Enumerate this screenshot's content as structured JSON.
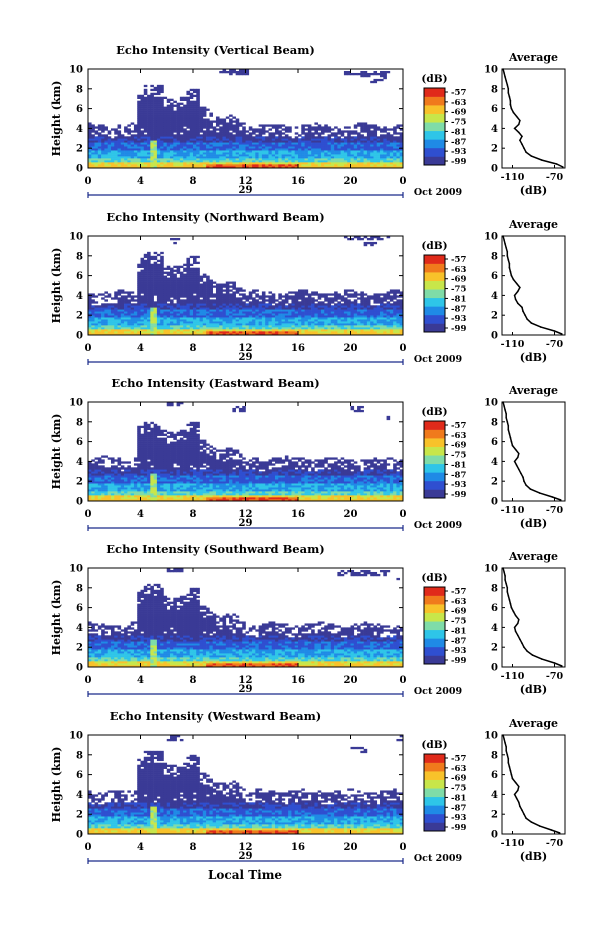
{
  "figure": {
    "bottom_xlabel": "Local Time",
    "date_label": "Oct 2009",
    "cbar_unit": "(dB)",
    "profile_title": "Average",
    "profile_xlabel": "(dB)",
    "ylabel": "Height (km)"
  },
  "colors": {
    "colormap": [
      "#3a3a96",
      "#2f4fd0",
      "#1f8ae6",
      "#2ec5e8",
      "#7fdca8",
      "#c8e64a",
      "#f8c22a",
      "#f07a1c",
      "#e02a1a"
    ],
    "background": "#ffffff",
    "axis": "#000000"
  },
  "chart_data": [
    {
      "type": "heatmap",
      "title": "Echo Intensity (Vertical Beam)",
      "xlabel": "",
      "x_ticks": [
        "0",
        "4",
        "8",
        "12",
        "16",
        "20",
        "0"
      ],
      "x_sublabel": "29",
      "xlim": [
        0,
        24
      ],
      "ylabel": "Height (km)",
      "y_ticks": [
        "0",
        "2",
        "4",
        "6",
        "8",
        "10"
      ],
      "ylim": [
        0,
        10
      ],
      "colorbar": {
        "unit": "(dB)",
        "ticks": [
          "-57",
          "-63",
          "-69",
          "-75",
          "-81",
          "-87",
          "-93",
          "-99"
        ],
        "range": [
          -99,
          -57
        ]
      },
      "profile": {
        "title": "Average",
        "xlabel": "(dB)",
        "x_ticks": [
          "-110",
          "-70"
        ],
        "xlim": [
          -120,
          -60
        ],
        "y_ticks": [
          "0",
          "2",
          "4",
          "6",
          "8",
          "10"
        ],
        "ylim": [
          0,
          10
        ],
        "points": [
          [
            -62,
            0.1
          ],
          [
            -68,
            0.4
          ],
          [
            -82,
            0.8
          ],
          [
            -92,
            1.2
          ],
          [
            -97,
            1.6
          ],
          [
            -99,
            2.0
          ],
          [
            -101,
            2.4
          ],
          [
            -103,
            2.8
          ],
          [
            -101,
            3.2
          ],
          [
            -104,
            3.6
          ],
          [
            -108,
            4.0
          ],
          [
            -104,
            4.4
          ],
          [
            -103,
            4.8
          ],
          [
            -106,
            5.2
          ],
          [
            -109,
            5.6
          ],
          [
            -111,
            6.0
          ],
          [
            -112,
            6.4
          ],
          [
            -112,
            6.8
          ],
          [
            -113,
            7.2
          ],
          [
            -114,
            7.6
          ],
          [
            -114,
            8.0
          ],
          [
            -115,
            8.4
          ],
          [
            -116,
            8.8
          ],
          [
            -117,
            9.2
          ],
          [
            -118,
            9.6
          ],
          [
            -119,
            10.0
          ]
        ]
      }
    },
    {
      "type": "heatmap",
      "title": "Echo Intensity (Northward Beam)",
      "xlabel": "",
      "x_ticks": [
        "0",
        "4",
        "8",
        "12",
        "16",
        "20",
        "0"
      ],
      "x_sublabel": "29",
      "xlim": [
        0,
        24
      ],
      "ylabel": "Height (km)",
      "y_ticks": [
        "0",
        "2",
        "4",
        "6",
        "8",
        "10"
      ],
      "ylim": [
        0,
        10
      ],
      "colorbar": {
        "unit": "(dB)",
        "ticks": [
          "-57",
          "-63",
          "-69",
          "-75",
          "-81",
          "-87",
          "-93",
          "-99"
        ],
        "range": [
          -99,
          -57
        ]
      },
      "profile": {
        "title": "Average",
        "xlabel": "(dB)",
        "x_ticks": [
          "-110",
          "-70"
        ],
        "xlim": [
          -120,
          -60
        ],
        "y_ticks": [
          "0",
          "2",
          "4",
          "6",
          "8",
          "10"
        ],
        "ylim": [
          0,
          10
        ],
        "points": [
          [
            -63,
            0.1
          ],
          [
            -70,
            0.4
          ],
          [
            -83,
            0.8
          ],
          [
            -92,
            1.2
          ],
          [
            -96,
            1.6
          ],
          [
            -98,
            2.0
          ],
          [
            -100,
            2.4
          ],
          [
            -101,
            2.8
          ],
          [
            -105,
            3.2
          ],
          [
            -107,
            3.6
          ],
          [
            -108,
            4.0
          ],
          [
            -105,
            4.4
          ],
          [
            -103,
            4.8
          ],
          [
            -106,
            5.2
          ],
          [
            -109,
            5.6
          ],
          [
            -111,
            6.0
          ],
          [
            -112,
            6.4
          ],
          [
            -113,
            6.8
          ],
          [
            -113,
            7.2
          ],
          [
            -114,
            7.6
          ],
          [
            -115,
            8.0
          ],
          [
            -115,
            8.4
          ],
          [
            -116,
            8.8
          ],
          [
            -117,
            9.2
          ],
          [
            -118,
            9.6
          ],
          [
            -119,
            10.0
          ]
        ]
      }
    },
    {
      "type": "heatmap",
      "title": "Echo Intensity (Eastward Beam)",
      "xlabel": "",
      "x_ticks": [
        "0",
        "4",
        "8",
        "12",
        "16",
        "20",
        "0"
      ],
      "x_sublabel": "29",
      "xlim": [
        0,
        24
      ],
      "ylabel": "Height (km)",
      "y_ticks": [
        "0",
        "2",
        "4",
        "6",
        "8",
        "10"
      ],
      "ylim": [
        0,
        10
      ],
      "colorbar": {
        "unit": "(dB)",
        "ticks": [
          "-57",
          "-63",
          "-69",
          "-75",
          "-81",
          "-87",
          "-93",
          "-99"
        ],
        "range": [
          -99,
          -57
        ]
      },
      "profile": {
        "title": "Average",
        "xlabel": "(dB)",
        "x_ticks": [
          "-110",
          "-70"
        ],
        "xlim": [
          -120,
          -60
        ],
        "y_ticks": [
          "0",
          "2",
          "4",
          "6",
          "8",
          "10"
        ],
        "ylim": [
          0,
          10
        ],
        "points": [
          [
            -64,
            0.1
          ],
          [
            -72,
            0.4
          ],
          [
            -84,
            0.8
          ],
          [
            -93,
            1.2
          ],
          [
            -97,
            1.6
          ],
          [
            -99,
            2.0
          ],
          [
            -100,
            2.4
          ],
          [
            -102,
            2.8
          ],
          [
            -104,
            3.2
          ],
          [
            -106,
            3.6
          ],
          [
            -108,
            4.0
          ],
          [
            -105,
            4.4
          ],
          [
            -104,
            4.8
          ],
          [
            -107,
            5.2
          ],
          [
            -110,
            5.6
          ],
          [
            -111,
            6.0
          ],
          [
            -112,
            6.4
          ],
          [
            -113,
            6.8
          ],
          [
            -114,
            7.2
          ],
          [
            -114,
            7.6
          ],
          [
            -115,
            8.0
          ],
          [
            -116,
            8.4
          ],
          [
            -116,
            8.8
          ],
          [
            -117,
            9.2
          ],
          [
            -118,
            9.6
          ],
          [
            -119,
            10.0
          ]
        ]
      }
    },
    {
      "type": "heatmap",
      "title": "Echo Intensity (Southward Beam)",
      "xlabel": "",
      "x_ticks": [
        "0",
        "4",
        "8",
        "12",
        "16",
        "20",
        "0"
      ],
      "x_sublabel": "29",
      "xlim": [
        0,
        24
      ],
      "ylabel": "Height (km)",
      "y_ticks": [
        "0",
        "2",
        "4",
        "6",
        "8",
        "10"
      ],
      "ylim": [
        0,
        10
      ],
      "colorbar": {
        "unit": "(dB)",
        "ticks": [
          "-57",
          "-63",
          "-69",
          "-75",
          "-81",
          "-87",
          "-93",
          "-99"
        ],
        "range": [
          -99,
          -57
        ]
      },
      "profile": {
        "title": "Average",
        "xlabel": "(dB)",
        "x_ticks": [
          "-110",
          "-70"
        ],
        "xlim": [
          -120,
          -60
        ],
        "y_ticks": [
          "0",
          "2",
          "4",
          "6",
          "8",
          "10"
        ],
        "ylim": [
          0,
          10
        ],
        "points": [
          [
            -63,
            0.1
          ],
          [
            -70,
            0.4
          ],
          [
            -82,
            0.8
          ],
          [
            -91,
            1.2
          ],
          [
            -96,
            1.6
          ],
          [
            -99,
            2.0
          ],
          [
            -101,
            2.4
          ],
          [
            -103,
            2.8
          ],
          [
            -105,
            3.2
          ],
          [
            -107,
            3.6
          ],
          [
            -108,
            4.0
          ],
          [
            -105,
            4.4
          ],
          [
            -104,
            4.8
          ],
          [
            -107,
            5.2
          ],
          [
            -109,
            5.6
          ],
          [
            -111,
            6.0
          ],
          [
            -112,
            6.4
          ],
          [
            -113,
            6.8
          ],
          [
            -114,
            7.2
          ],
          [
            -115,
            7.6
          ],
          [
            -115,
            8.0
          ],
          [
            -116,
            8.4
          ],
          [
            -117,
            8.8
          ],
          [
            -117,
            9.2
          ],
          [
            -118,
            9.6
          ],
          [
            -119,
            10.0
          ]
        ]
      }
    },
    {
      "type": "heatmap",
      "title": "Echo Intensity (Westward Beam)",
      "xlabel": "Local Time",
      "x_ticks": [
        "0",
        "4",
        "8",
        "12",
        "16",
        "20",
        "0"
      ],
      "x_sublabel": "29",
      "xlim": [
        0,
        24
      ],
      "ylabel": "Height (km)",
      "y_ticks": [
        "0",
        "2",
        "4",
        "6",
        "8",
        "10"
      ],
      "ylim": [
        0,
        10
      ],
      "colorbar": {
        "unit": "(dB)",
        "ticks": [
          "-57",
          "-63",
          "-69",
          "-75",
          "-81",
          "-87",
          "-93",
          "-99"
        ],
        "range": [
          -99,
          -57
        ]
      },
      "profile": {
        "title": "Average",
        "xlabel": "(dB)",
        "x_ticks": [
          "-110",
          "-70"
        ],
        "xlim": [
          -120,
          -60
        ],
        "y_ticks": [
          "0",
          "2",
          "4",
          "6",
          "8",
          "10"
        ],
        "ylim": [
          0,
          10
        ],
        "points": [
          [
            -65,
            0.1
          ],
          [
            -73,
            0.4
          ],
          [
            -84,
            0.8
          ],
          [
            -92,
            1.2
          ],
          [
            -97,
            1.6
          ],
          [
            -99,
            2.0
          ],
          [
            -101,
            2.4
          ],
          [
            -103,
            2.8
          ],
          [
            -104,
            3.2
          ],
          [
            -106,
            3.6
          ],
          [
            -108,
            4.0
          ],
          [
            -105,
            4.4
          ],
          [
            -104,
            4.8
          ],
          [
            -107,
            5.2
          ],
          [
            -110,
            5.6
          ],
          [
            -111,
            6.0
          ],
          [
            -112,
            6.4
          ],
          [
            -113,
            6.8
          ],
          [
            -114,
            7.2
          ],
          [
            -114,
            7.6
          ],
          [
            -115,
            8.0
          ],
          [
            -116,
            8.4
          ],
          [
            -116,
            8.8
          ],
          [
            -117,
            9.2
          ],
          [
            -118,
            9.6
          ],
          [
            -119,
            10.0
          ]
        ]
      }
    }
  ]
}
